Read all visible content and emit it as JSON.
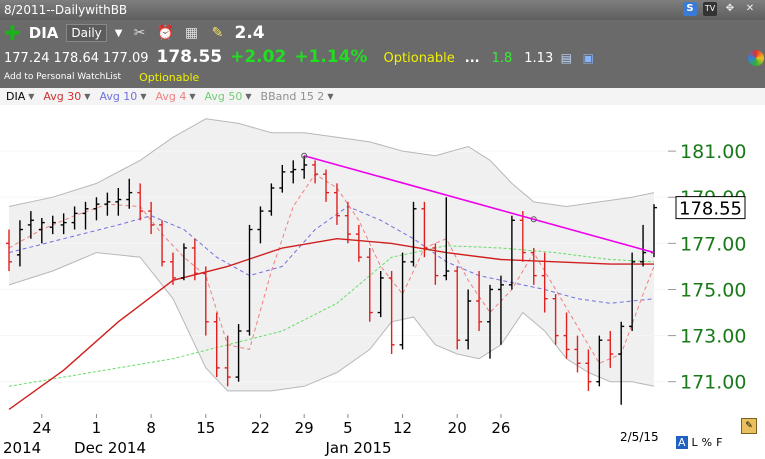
{
  "window": {
    "title": "8/2011--DailywithBB"
  },
  "header": {
    "symbol": "DIA",
    "period": "Daily",
    "last_big": "2.4",
    "quote": {
      "open": "177.24",
      "high": "178.64",
      "low": "177.09",
      "price": "178.55",
      "change": "+2.02",
      "change_pct": "+1.14%"
    },
    "optionable_label": "Optionable",
    "dots": "...",
    "value1": "1.8",
    "value2": "1.13",
    "watchlist_label": "Add to Personal WatchList"
  },
  "legend": [
    {
      "label": "DIA",
      "color": "#000000"
    },
    {
      "label": "Avg 30",
      "color": "#d03030"
    },
    {
      "label": "Avg 10",
      "color": "#7070e0"
    },
    {
      "label": "Avg 4",
      "color": "#f08080"
    },
    {
      "label": "Avg 50",
      "color": "#70d070"
    },
    {
      "label": "BBand 15 2",
      "color": "#909090"
    }
  ],
  "chart_data": {
    "type": "ohlc",
    "ylim": [
      169.6,
      183.0
    ],
    "y_ticks": [
      171,
      173,
      175,
      177,
      179,
      181
    ],
    "y_tick_labels": [
      "171.00",
      "173.00",
      "175.00",
      "177.00",
      "179.00",
      "181.00"
    ],
    "last_price_label": "178.55",
    "x_ticks": [
      {
        "label": "24",
        "i": 3
      },
      {
        "label": "1",
        "i": 8
      },
      {
        "label": "8",
        "i": 13
      },
      {
        "label": "15",
        "i": 18
      },
      {
        "label": "22",
        "i": 23
      },
      {
        "label": "29",
        "i": 27
      },
      {
        "label": "5",
        "i": 31
      },
      {
        "label": "12",
        "i": 36
      },
      {
        "label": "20",
        "i": 41
      },
      {
        "label": "26",
        "i": 45
      }
    ],
    "x_period_labels": [
      {
        "label": "2014",
        "i": 0
      },
      {
        "label": "Dec 2014",
        "i": 6.5
      },
      {
        "label": "Jan 2015",
        "i": 29.5
      }
    ],
    "date_label": "2/5/15",
    "bars": [
      [
        177.0,
        177.6,
        175.8,
        176.2
      ],
      [
        176.5,
        178.0,
        176.0,
        177.6
      ],
      [
        177.8,
        178.4,
        177.2,
        178.0
      ],
      [
        177.6,
        178.1,
        177.0,
        177.9
      ],
      [
        177.7,
        178.2,
        177.4,
        177.9
      ],
      [
        177.8,
        178.3,
        177.4,
        177.9
      ],
      [
        177.9,
        178.6,
        177.6,
        178.3
      ],
      [
        178.3,
        178.8,
        177.6,
        178.5
      ],
      [
        178.5,
        179.0,
        178.0,
        178.7
      ],
      [
        178.7,
        179.2,
        178.2,
        178.8
      ],
      [
        178.8,
        179.4,
        178.2,
        178.9
      ],
      [
        178.9,
        179.8,
        178.5,
        179.2
      ],
      [
        179.2,
        179.6,
        178.0,
        178.4
      ],
      [
        178.4,
        178.8,
        177.4,
        177.8
      ],
      [
        177.8,
        178.0,
        176.0,
        176.2
      ],
      [
        176.2,
        176.6,
        175.2,
        175.5
      ],
      [
        175.5,
        177.0,
        175.4,
        176.8
      ],
      [
        176.8,
        177.2,
        175.4,
        175.7
      ],
      [
        175.7,
        176.0,
        173.0,
        173.6
      ],
      [
        173.6,
        174.0,
        171.2,
        171.6
      ],
      [
        171.6,
        173.0,
        170.8,
        171.2
      ],
      [
        171.2,
        173.5,
        171.0,
        173.2
      ],
      [
        173.2,
        177.8,
        173.0,
        177.6
      ],
      [
        177.6,
        178.6,
        177.0,
        178.4
      ],
      [
        178.4,
        179.6,
        178.2,
        179.4
      ],
      [
        179.4,
        180.4,
        179.2,
        180.1
      ],
      [
        180.1,
        180.6,
        179.6,
        180.2
      ],
      [
        180.2,
        180.8,
        179.8,
        180.4
      ],
      [
        180.4,
        180.6,
        179.6,
        180.0
      ],
      [
        180.0,
        180.2,
        178.8,
        179.2
      ],
      [
        179.2,
        179.6,
        177.8,
        178.2
      ],
      [
        178.2,
        178.8,
        177.0,
        177.4
      ],
      [
        177.4,
        177.8,
        176.2,
        176.4
      ],
      [
        176.4,
        176.8,
        173.6,
        174.0
      ],
      [
        174.0,
        175.8,
        173.8,
        175.5
      ],
      [
        175.5,
        175.8,
        172.2,
        172.6
      ],
      [
        172.6,
        176.6,
        172.4,
        176.2
      ],
      [
        176.2,
        178.8,
        176.0,
        178.5
      ],
      [
        178.5,
        178.8,
        176.4,
        176.8
      ],
      [
        176.8,
        177.0,
        175.2,
        175.6
      ],
      [
        175.6,
        179.0,
        175.4,
        175.8
      ],
      [
        175.8,
        176.0,
        172.4,
        172.8
      ],
      [
        172.8,
        175.0,
        172.4,
        174.5
      ],
      [
        174.5,
        175.8,
        173.2,
        173.6
      ],
      [
        173.6,
        175.2,
        172.0,
        175.0
      ],
      [
        175.0,
        175.6,
        172.6,
        175.2
      ],
      [
        175.2,
        178.2,
        175.0,
        178.0
      ],
      [
        178.0,
        178.4,
        176.2,
        176.6
      ],
      [
        176.6,
        176.8,
        175.2,
        175.6
      ],
      [
        175.6,
        176.6,
        174.0,
        174.6
      ],
      [
        174.6,
        174.8,
        172.6,
        173.0
      ],
      [
        173.0,
        174.0,
        172.0,
        172.4
      ],
      [
        172.4,
        173.0,
        171.4,
        171.8
      ],
      [
        171.8,
        172.4,
        170.6,
        171.0
      ],
      [
        171.0,
        173.0,
        170.8,
        172.8
      ],
      [
        172.8,
        173.2,
        171.6,
        172.2
      ],
      [
        172.2,
        173.6,
        170.0,
        173.4
      ],
      [
        173.4,
        176.6,
        173.2,
        176.2
      ],
      [
        176.2,
        177.8,
        176.0,
        176.6
      ],
      [
        176.6,
        178.7,
        176.4,
        178.55
      ]
    ],
    "avg30": [
      [
        0,
        169.8
      ],
      [
        5,
        171.5
      ],
      [
        10,
        173.6
      ],
      [
        15,
        175.4
      ],
      [
        20,
        176.0
      ],
      [
        25,
        176.8
      ],
      [
        30,
        177.2
      ],
      [
        35,
        177.0
      ],
      [
        40,
        176.6
      ],
      [
        45,
        176.3
      ],
      [
        50,
        176.2
      ],
      [
        55,
        176.1
      ],
      [
        59,
        176.1
      ]
    ],
    "avg10": [
      [
        0,
        176.6
      ],
      [
        5,
        177.2
      ],
      [
        10,
        177.8
      ],
      [
        13,
        178.2
      ],
      [
        16,
        177.6
      ],
      [
        19,
        176.4
      ],
      [
        22,
        175.6
      ],
      [
        25,
        176.0
      ],
      [
        28,
        177.6
      ],
      [
        31,
        178.6
      ],
      [
        34,
        178.0
      ],
      [
        37,
        177.2
      ],
      [
        40,
        176.2
      ],
      [
        43,
        175.6
      ],
      [
        46,
        175.3
      ],
      [
        49,
        175.0
      ],
      [
        52,
        174.6
      ],
      [
        55,
        174.4
      ],
      [
        59,
        174.6
      ]
    ],
    "avg4": [
      [
        0,
        176.8
      ],
      [
        3,
        177.6
      ],
      [
        6,
        178.2
      ],
      [
        9,
        178.7
      ],
      [
        12,
        178.6
      ],
      [
        14,
        177.4
      ],
      [
        16,
        176.4
      ],
      [
        18,
        175.6
      ],
      [
        20,
        172.6
      ],
      [
        22,
        172.4
      ],
      [
        24,
        175.8
      ],
      [
        26,
        178.6
      ],
      [
        28,
        180.0
      ],
      [
        30,
        179.4
      ],
      [
        32,
        178.0
      ],
      [
        34,
        176.0
      ],
      [
        36,
        174.8
      ],
      [
        38,
        176.8
      ],
      [
        40,
        177.2
      ],
      [
        42,
        175.4
      ],
      [
        44,
        174.0
      ],
      [
        46,
        175.0
      ],
      [
        48,
        176.6
      ],
      [
        50,
        175.0
      ],
      [
        52,
        173.4
      ],
      [
        54,
        171.8
      ],
      [
        56,
        172.2
      ],
      [
        58,
        174.8
      ],
      [
        59,
        176.0
      ]
    ],
    "avg50": [
      [
        0,
        170.8
      ],
      [
        5,
        171.2
      ],
      [
        10,
        171.6
      ],
      [
        15,
        172.0
      ],
      [
        20,
        172.6
      ],
      [
        25,
        173.2
      ],
      [
        30,
        174.4
      ],
      [
        35,
        176.4
      ],
      [
        40,
        176.9
      ],
      [
        45,
        176.8
      ],
      [
        50,
        176.6
      ],
      [
        55,
        176.3
      ],
      [
        59,
        176.2
      ]
    ],
    "bb_upper": [
      [
        0,
        178.6
      ],
      [
        4,
        179.0
      ],
      [
        8,
        179.6
      ],
      [
        12,
        180.6
      ],
      [
        15,
        181.6
      ],
      [
        18,
        182.4
      ],
      [
        21,
        182.2
      ],
      [
        24,
        181.8
      ],
      [
        27,
        181.8
      ],
      [
        30,
        181.6
      ],
      [
        33,
        181.4
      ],
      [
        36,
        181.0
      ],
      [
        39,
        180.8
      ],
      [
        42,
        181.2
      ],
      [
        44,
        180.6
      ],
      [
        46,
        179.6
      ],
      [
        48,
        178.8
      ],
      [
        51,
        178.6
      ],
      [
        54,
        178.8
      ],
      [
        57,
        179.0
      ],
      [
        59,
        179.2
      ]
    ],
    "bb_lower": [
      [
        0,
        175.2
      ],
      [
        4,
        175.8
      ],
      [
        8,
        176.6
      ],
      [
        12,
        176.4
      ],
      [
        15,
        174.6
      ],
      [
        18,
        171.6
      ],
      [
        20,
        170.6
      ],
      [
        24,
        170.6
      ],
      [
        27,
        170.8
      ],
      [
        30,
        171.4
      ],
      [
        33,
        172.4
      ],
      [
        35,
        173.6
      ],
      [
        37,
        173.8
      ],
      [
        39,
        172.6
      ],
      [
        41,
        172.2
      ],
      [
        43,
        172.0
      ],
      [
        45,
        172.6
      ],
      [
        47,
        174.0
      ],
      [
        49,
        173.2
      ],
      [
        51,
        172.0
      ],
      [
        53,
        171.4
      ],
      [
        55,
        171.0
      ],
      [
        57,
        171.0
      ],
      [
        59,
        170.8
      ]
    ],
    "trendline": {
      "points": [
        [
          27,
          180.8
        ],
        [
          59,
          176.6
        ]
      ],
      "markers": [
        27,
        48
      ],
      "color": "#ee00ee"
    }
  }
}
